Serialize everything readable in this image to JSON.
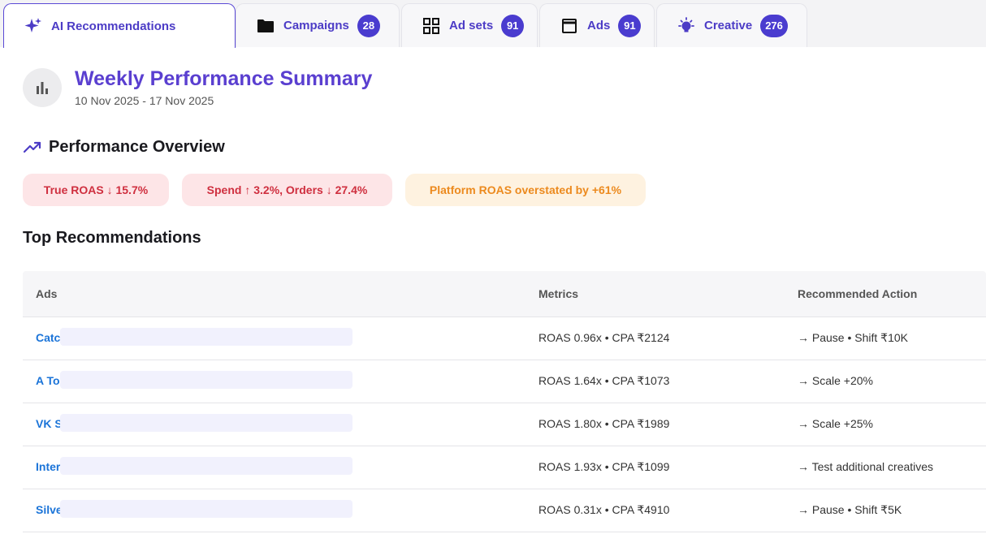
{
  "tabs": [
    {
      "label": "AI Recommendations",
      "icon": "sparkle-icon",
      "badge": null,
      "active": true
    },
    {
      "label": "Campaigns",
      "icon": "folder-icon",
      "badge": "28",
      "active": false
    },
    {
      "label": "Ad sets",
      "icon": "grid-icon",
      "badge": "91",
      "active": false
    },
    {
      "label": "Ads",
      "icon": "browser-window-icon",
      "badge": "91",
      "active": false
    },
    {
      "label": "Creative",
      "icon": "lightbulb-icon",
      "badge": "276",
      "active": false
    }
  ],
  "summary": {
    "icon": "bar-chart-icon",
    "title": "Weekly Performance Summary",
    "date_range": "10 Nov 2025 - 17 Nov 2025"
  },
  "overview": {
    "icon": "trending-up-icon",
    "title": "Performance Overview",
    "pills": [
      {
        "text": "True ROAS ↓ 15.7%",
        "tone": "red"
      },
      {
        "text": "Spend ↑ 3.2%, Orders ↓ 27.4%",
        "tone": "red"
      },
      {
        "text": "Platform ROAS overstated by +61%",
        "tone": "orange"
      }
    ]
  },
  "recommendations": {
    "title": "Top Recommendations",
    "columns": [
      "Ads",
      "Metrics",
      "Recommended Action"
    ],
    "rows": [
      {
        "ad": "Catc",
        "metrics": "ROAS 0.96x • CPA ₹2124",
        "action": "→ Pause • Shift ₹10K"
      },
      {
        "ad": "A To",
        "metrics": "ROAS 1.64x • CPA ₹1073",
        "action": "→ Scale +20%"
      },
      {
        "ad": "VK S",
        "metrics": "ROAS 1.80x • CPA ₹1989",
        "action": "→ Scale +25%"
      },
      {
        "ad": "Inter",
        "metrics": "ROAS 1.93x • CPA ₹1099",
        "action": "→ Test additional creatives"
      },
      {
        "ad": "Silve",
        "metrics": "ROAS 0.31x • CPA ₹4910",
        "action": "→ Pause • Shift ₹5K"
      }
    ]
  },
  "colors": {
    "accent": "#4a3ccf",
    "title": "#5a3fd0",
    "link": "#1b74d8",
    "negative": "#cf2f3f",
    "warning": "#ec8a1e"
  }
}
